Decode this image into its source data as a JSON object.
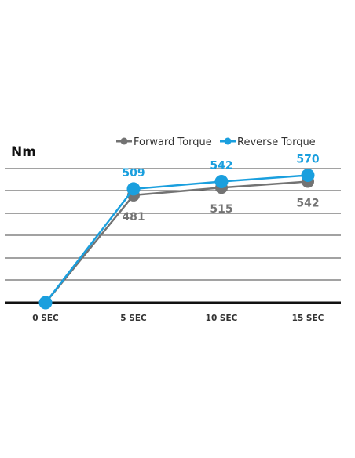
{
  "chart_data": {
    "type": "line",
    "unit_label": "Nm",
    "categories": [
      "0 SEC",
      "5 SEC",
      "10 SEC",
      "15 SEC"
    ],
    "ylim": [
      0,
      600
    ],
    "grid": true,
    "legend_position": "top-right",
    "series": [
      {
        "name": "Forward Torque",
        "color": "#737373",
        "values": [
          0,
          481,
          515,
          542
        ],
        "labels": [
          "",
          "481",
          "515",
          "542"
        ],
        "label_position": "below"
      },
      {
        "name": "Reverse Torque",
        "color": "#1a9fde",
        "values": [
          0,
          509,
          542,
          570
        ],
        "labels": [
          "",
          "509",
          "542",
          "570"
        ],
        "label_position": "above"
      }
    ]
  }
}
